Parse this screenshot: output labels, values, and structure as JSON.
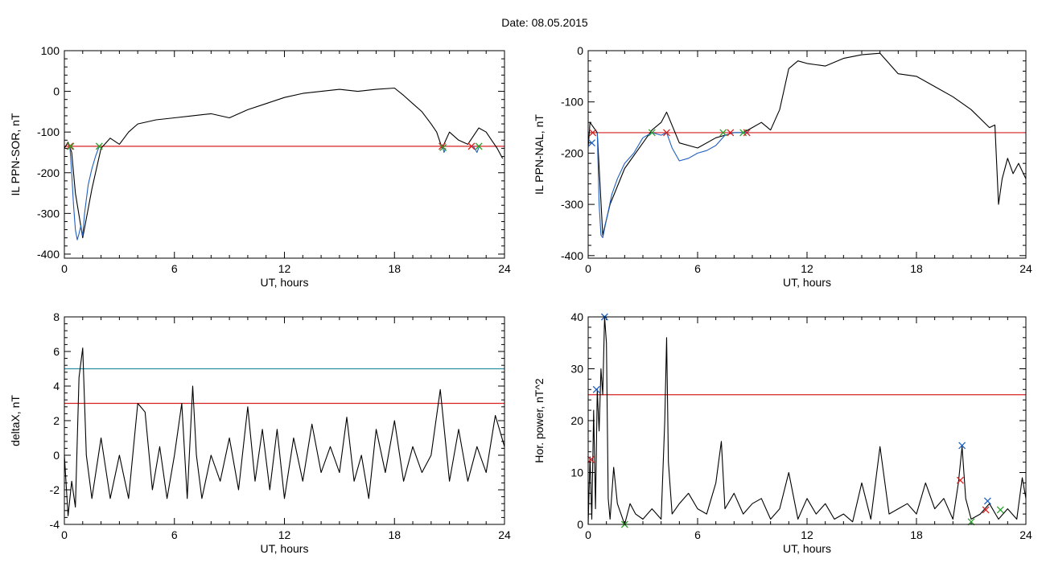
{
  "header": {
    "date_label": "Date:  08.05.2015"
  },
  "chart_data": [
    {
      "id": "p1",
      "type": "line",
      "xlabel": "UT, hours",
      "ylabel": "IL PPN-SOR, nT",
      "xlim": [
        0,
        24
      ],
      "ylim": [
        -410,
        100
      ],
      "xticks": [
        0,
        6,
        12,
        18,
        24
      ],
      "yticks": [
        -400,
        -300,
        -200,
        -100,
        0,
        100
      ],
      "hlines": [
        {
          "y": -135,
          "color": "#d62020"
        }
      ],
      "series": [
        {
          "color": "#000000",
          "x": [
            0,
            0.2,
            0.4,
            0.6,
            1.0,
            1.5,
            2.0,
            2.5,
            3.0,
            3.5,
            4.0,
            5.0,
            6.0,
            7.0,
            8.0,
            9.0,
            10.0,
            11.0,
            12.0,
            13.0,
            14.0,
            15.0,
            16.0,
            17.0,
            18.0,
            18.5,
            19.0,
            19.5,
            20.0,
            20.3,
            20.6,
            21.0,
            21.5,
            22.0,
            22.3,
            22.6,
            23.0,
            23.3,
            23.6,
            23.9
          ],
          "y": [
            -140,
            -125,
            -150,
            -250,
            -360,
            -240,
            -140,
            -115,
            -130,
            -100,
            -80,
            -70,
            -65,
            -60,
            -55,
            -65,
            -45,
            -30,
            -15,
            -5,
            0,
            5,
            0,
            5,
            8,
            -10,
            -30,
            -50,
            -80,
            -100,
            -140,
            -100,
            -120,
            -130,
            -110,
            -90,
            -100,
            -120,
            -140,
            -165
          ]
        },
        {
          "color": "#1f5fbf",
          "x": [
            0.3,
            0.4,
            0.5,
            0.6,
            0.7,
            0.8,
            0.9,
            1.0,
            1.1,
            1.3,
            1.5,
            1.7,
            1.9
          ],
          "y": [
            -135,
            -200,
            -280,
            -340,
            -365,
            -350,
            -330,
            -355,
            -300,
            -230,
            -190,
            -160,
            -135
          ]
        },
        {
          "color": "#1f5fbf",
          "x": [
            20.6,
            20.7,
            20.8
          ],
          "y": [
            -130,
            -150,
            -140
          ]
        },
        {
          "color": "#1f5fbf",
          "x": [
            22.3,
            22.5,
            22.6
          ],
          "y": [
            -135,
            -150,
            -138
          ]
        }
      ],
      "markers": [
        {
          "x": 0.3,
          "y": -135,
          "color": "#d62020"
        },
        {
          "x": 0.35,
          "y": -135,
          "color": "#2ca02c"
        },
        {
          "x": 1.9,
          "y": -135,
          "color": "#2ca02c"
        },
        {
          "x": 20.6,
          "y": -135,
          "color": "#d62020"
        },
        {
          "x": 20.65,
          "y": -138,
          "color": "#2ca02c"
        },
        {
          "x": 22.2,
          "y": -135,
          "color": "#d62020"
        },
        {
          "x": 22.6,
          "y": -135,
          "color": "#2ca02c"
        }
      ]
    },
    {
      "id": "p2",
      "type": "line",
      "xlabel": "UT, hours",
      "ylabel": "IL PPN-NAL, nT",
      "xlim": [
        0,
        24
      ],
      "ylim": [
        -405,
        0
      ],
      "xticks": [
        0,
        6,
        12,
        18,
        24
      ],
      "yticks": [
        -400,
        -300,
        -200,
        -100,
        0
      ],
      "hlines": [
        {
          "y": -160,
          "color": "#d62020"
        }
      ],
      "series": [
        {
          "color": "#000000",
          "x": [
            0,
            0.1,
            0.3,
            0.5,
            0.8,
            1.2,
            2.0,
            3.0,
            3.5,
            4.0,
            4.3,
            5.0,
            6.0,
            7.0,
            7.5,
            8.0,
            8.5,
            9.0,
            9.5,
            10.0,
            10.5,
            11.0,
            11.5,
            12.0,
            13.0,
            14.0,
            15.0,
            16.0,
            17.0,
            18.0,
            19.0,
            20.0,
            21.0,
            22.0,
            22.3,
            22.5,
            22.7,
            23.0,
            23.3,
            23.6,
            24.0
          ],
          "y": [
            -190,
            -140,
            -150,
            -160,
            -360,
            -300,
            -230,
            -180,
            -155,
            -140,
            -120,
            -180,
            -190,
            -170,
            -165,
            -160,
            -160,
            -150,
            -140,
            -155,
            -115,
            -35,
            -20,
            -25,
            -30,
            -15,
            -8,
            -5,
            -45,
            -50,
            -70,
            -90,
            -115,
            -150,
            -145,
            -300,
            -250,
            -210,
            -240,
            -220,
            -250
          ]
        },
        {
          "color": "#1f5fbf",
          "x": [
            0.5,
            0.6,
            0.7,
            0.8,
            1.0,
            1.3,
            1.6,
            2.0,
            2.5,
            3.0,
            3.5,
            4.0,
            4.3
          ],
          "y": [
            -160,
            -300,
            -360,
            -365,
            -330,
            -280,
            -250,
            -220,
            -200,
            -170,
            -160,
            -165,
            -160
          ]
        },
        {
          "color": "#1f5fbf",
          "x": [
            4.3,
            4.6,
            5.0,
            5.5,
            6.0,
            6.5,
            7.0,
            7.5,
            8.0,
            8.5,
            8.8
          ],
          "y": [
            -160,
            -190,
            -215,
            -210,
            -200,
            -195,
            -185,
            -165,
            -160,
            -160,
            -160
          ]
        }
      ],
      "markers": [
        {
          "x": 0.25,
          "y": -160,
          "color": "#d62020"
        },
        {
          "x": 0.2,
          "y": -180,
          "color": "#1f5fbf"
        },
        {
          "x": 3.5,
          "y": -160,
          "color": "#2ca02c"
        },
        {
          "x": 4.3,
          "y": -160,
          "color": "#d62020"
        },
        {
          "x": 7.4,
          "y": -160,
          "color": "#2ca02c"
        },
        {
          "x": 7.8,
          "y": -160,
          "color": "#d62020"
        },
        {
          "x": 8.5,
          "y": -160,
          "color": "#2ca02c"
        },
        {
          "x": 8.7,
          "y": -160,
          "color": "#d62020"
        }
      ]
    },
    {
      "id": "p3",
      "type": "line",
      "xlabel": "UT, hours",
      "ylabel": "deltaX, nT",
      "xlim": [
        0,
        24
      ],
      "ylim": [
        -4,
        8
      ],
      "xticks": [
        0,
        6,
        12,
        18,
        24
      ],
      "yticks": [
        -4,
        -2,
        0,
        2,
        4,
        6,
        8
      ],
      "hlines": [
        {
          "y": 5,
          "color": "#2f8fa0"
        },
        {
          "y": 3,
          "color": "#d62020"
        }
      ],
      "series": [
        {
          "color": "#000000",
          "x": [
            0,
            0.2,
            0.4,
            0.6,
            0.8,
            1.0,
            1.2,
            1.5,
            2.0,
            2.5,
            3.0,
            3.5,
            4.0,
            4.4,
            4.8,
            5.2,
            5.6,
            6.0,
            6.4,
            6.7,
            7.0,
            7.2,
            7.5,
            8.0,
            8.5,
            9.0,
            9.5,
            10.0,
            10.4,
            10.8,
            11.2,
            11.6,
            12.0,
            12.5,
            13.0,
            13.5,
            14.0,
            14.5,
            15.0,
            15.4,
            15.8,
            16.2,
            16.6,
            17.0,
            17.5,
            18.0,
            18.5,
            19.0,
            19.5,
            20.0,
            20.5,
            21.0,
            21.5,
            22.0,
            22.5,
            23.0,
            23.5,
            24.0
          ],
          "y": [
            0,
            -3.5,
            -1.5,
            -3,
            4.5,
            6.2,
            0,
            -2.5,
            1,
            -2.5,
            0,
            -2.5,
            3,
            2.5,
            -2,
            0.5,
            -2.5,
            0,
            3,
            -2.5,
            4,
            0,
            -2.5,
            0,
            -1.5,
            1,
            -2,
            2.8,
            -1.5,
            1.5,
            -2,
            1.5,
            -2.5,
            1,
            -1.5,
            1.8,
            -1,
            0.5,
            -1,
            2.2,
            -1.5,
            0,
            -2.5,
            1.5,
            -1,
            2,
            -1.5,
            0.5,
            -1,
            0,
            3.8,
            -1.5,
            1.5,
            -1.5,
            0.5,
            -1,
            2.3,
            0.5
          ]
        }
      ],
      "markers": []
    },
    {
      "id": "p4",
      "type": "line",
      "xlabel": "UT, hours",
      "ylabel": "Hor. power, nT^2",
      "xlim": [
        0,
        24
      ],
      "ylim": [
        0,
        40
      ],
      "xticks": [
        0,
        6,
        12,
        18,
        24
      ],
      "yticks": [
        0,
        10,
        20,
        30,
        40
      ],
      "hlines": [
        {
          "y": 25,
          "color": "#d62020"
        }
      ],
      "series": [
        {
          "color": "#000000",
          "x": [
            0,
            0.1,
            0.2,
            0.3,
            0.4,
            0.5,
            0.6,
            0.7,
            0.8,
            0.9,
            1.0,
            1.1,
            1.2,
            1.4,
            1.6,
            1.8,
            2.0,
            2.3,
            2.6,
            3.0,
            3.5,
            4.0,
            4.2,
            4.3,
            4.4,
            4.6,
            5.0,
            5.5,
            6.0,
            6.5,
            7.0,
            7.3,
            7.5,
            8.0,
            8.5,
            9.0,
            9.5,
            10.0,
            10.5,
            11.0,
            11.5,
            12.0,
            12.5,
            13.0,
            13.5,
            14.0,
            14.5,
            15.0,
            15.5,
            16.0,
            16.5,
            17.0,
            17.5,
            18.0,
            18.5,
            19.0,
            19.5,
            20.0,
            20.3,
            20.5,
            20.7,
            21.0,
            21.5,
            22.0,
            22.5,
            23.0,
            23.5,
            23.8,
            24.0
          ],
          "y": [
            0,
            13,
            1,
            22,
            3,
            26,
            18,
            30,
            25,
            40,
            35,
            5,
            1,
            11,
            4,
            2,
            0,
            4,
            2,
            1,
            3,
            1,
            20,
            36,
            12,
            2,
            4,
            6,
            3,
            2,
            8,
            16,
            3,
            6,
            2,
            4,
            5,
            1,
            3,
            10,
            1,
            5,
            2,
            4,
            1,
            2,
            0.5,
            8,
            1,
            15,
            2,
            3,
            4,
            2,
            8,
            3,
            5,
            1,
            8,
            15,
            5,
            1,
            2,
            4,
            1,
            3,
            1,
            9,
            5
          ]
        }
      ],
      "markers": [
        {
          "x": 0.15,
          "y": 12.5,
          "color": "#d62020"
        },
        {
          "x": 0.45,
          "y": 26,
          "color": "#1f5fbf"
        },
        {
          "x": 0.9,
          "y": 40,
          "color": "#1f5fbf"
        },
        {
          "x": 2.0,
          "y": 0,
          "color": "#2ca02c"
        },
        {
          "x": 20.5,
          "y": 15.2,
          "color": "#1f5fbf"
        },
        {
          "x": 20.4,
          "y": 8.5,
          "color": "#d62020"
        },
        {
          "x": 21.0,
          "y": 0.5,
          "color": "#2ca02c"
        },
        {
          "x": 21.9,
          "y": 4.5,
          "color": "#1f5fbf"
        },
        {
          "x": 21.8,
          "y": 2.8,
          "color": "#d62020"
        },
        {
          "x": 22.6,
          "y": 2.8,
          "color": "#2ca02c"
        }
      ]
    }
  ]
}
